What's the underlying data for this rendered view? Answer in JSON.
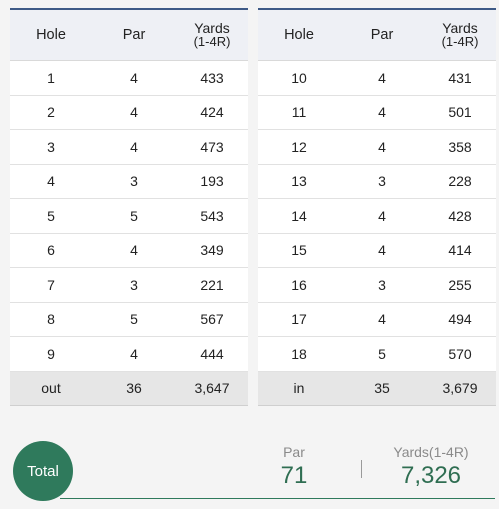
{
  "headers": {
    "hole": "Hole",
    "par": "Par",
    "yards": "Yards",
    "yards_sub": "(1-4R)"
  },
  "front": {
    "rows": [
      {
        "hole": "1",
        "par": "4",
        "yards": "433"
      },
      {
        "hole": "2",
        "par": "4",
        "yards": "424"
      },
      {
        "hole": "3",
        "par": "4",
        "yards": "473"
      },
      {
        "hole": "4",
        "par": "3",
        "yards": "193"
      },
      {
        "hole": "5",
        "par": "5",
        "yards": "543"
      },
      {
        "hole": "6",
        "par": "4",
        "yards": "349"
      },
      {
        "hole": "7",
        "par": "3",
        "yards": "221"
      },
      {
        "hole": "8",
        "par": "5",
        "yards": "567"
      },
      {
        "hole": "9",
        "par": "4",
        "yards": "444"
      }
    ],
    "total": {
      "label": "out",
      "par": "36",
      "yards": "3,647"
    }
  },
  "back": {
    "rows": [
      {
        "hole": "10",
        "par": "4",
        "yards": "431"
      },
      {
        "hole": "11",
        "par": "4",
        "yards": "501"
      },
      {
        "hole": "12",
        "par": "4",
        "yards": "358"
      },
      {
        "hole": "13",
        "par": "3",
        "yards": "228"
      },
      {
        "hole": "14",
        "par": "4",
        "yards": "428"
      },
      {
        "hole": "15",
        "par": "4",
        "yards": "414"
      },
      {
        "hole": "16",
        "par": "3",
        "yards": "255"
      },
      {
        "hole": "17",
        "par": "4",
        "yards": "494"
      },
      {
        "hole": "18",
        "par": "5",
        "yards": "570"
      }
    ],
    "total": {
      "label": "in",
      "par": "35",
      "yards": "3,679"
    }
  },
  "summary": {
    "total_label": "Total",
    "par_label": "Par",
    "par_value": "71",
    "yards_label": "Yards(1-4R)",
    "yards_value": "7,326"
  },
  "colors": {
    "header_rule": "#3e5a86",
    "accent_green": "#2f7a5c"
  }
}
